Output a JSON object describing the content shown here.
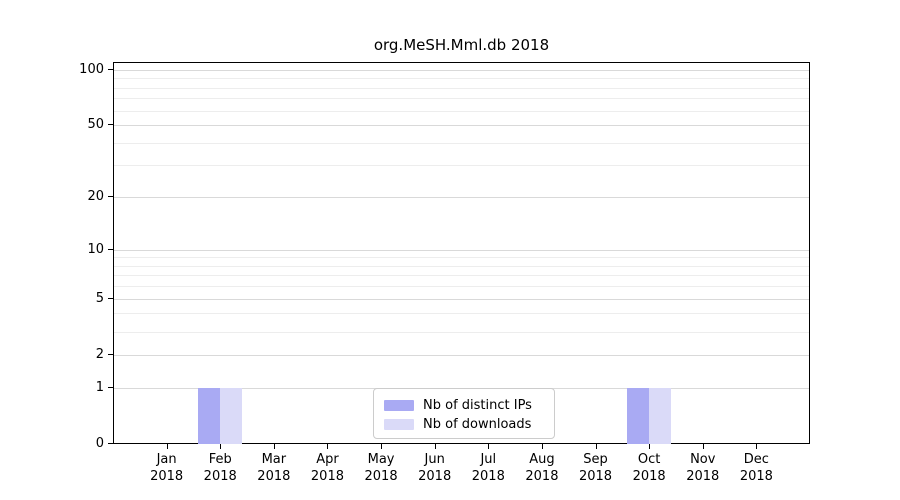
{
  "title": "org.MeSH.Mml.db 2018",
  "colors": {
    "distinct_ips": "#a9aaf3",
    "downloads": "#dadaf8",
    "grid_major": "#d9d9d9",
    "grid_minor": "#ededed",
    "spine": "#000000",
    "legend_border": "#cccccc"
  },
  "legend": {
    "items": [
      {
        "label": "Nb of distinct IPs",
        "series_index": 0
      },
      {
        "label": "Nb of downloads",
        "series_index": 1
      }
    ]
  },
  "chart_data": {
    "type": "bar",
    "title": "org.MeSH.Mml.db 2018",
    "categories": [
      [
        "Jan",
        "2018"
      ],
      [
        "Feb",
        "2018"
      ],
      [
        "Mar",
        "2018"
      ],
      [
        "Apr",
        "2018"
      ],
      [
        "May",
        "2018"
      ],
      [
        "Jun",
        "2018"
      ],
      [
        "Jul",
        "2018"
      ],
      [
        "Aug",
        "2018"
      ],
      [
        "Sep",
        "2018"
      ],
      [
        "Oct",
        "2018"
      ],
      [
        "Nov",
        "2018"
      ],
      [
        "Dec",
        "2018"
      ]
    ],
    "series": [
      {
        "name": "Nb of distinct IPs",
        "color": "#a9aaf3",
        "values": [
          0,
          1,
          0,
          0,
          0,
          0,
          0,
          0,
          0,
          1,
          0,
          0
        ]
      },
      {
        "name": "Nb of downloads",
        "color": "#dadaf8",
        "values": [
          0,
          1,
          0,
          0,
          0,
          0,
          0,
          0,
          0,
          1,
          0,
          0
        ]
      }
    ],
    "xlabel": "",
    "ylabel": "",
    "yscale": "log1p",
    "ylim": [
      0,
      110
    ],
    "yticks": [
      0,
      1,
      2,
      5,
      10,
      20,
      50,
      100
    ],
    "minor_gridlines": [
      3,
      4,
      6,
      7,
      8,
      9,
      30,
      40,
      60,
      70,
      80,
      90
    ],
    "grid": "horizontal",
    "legend_position": "bottom-center"
  }
}
